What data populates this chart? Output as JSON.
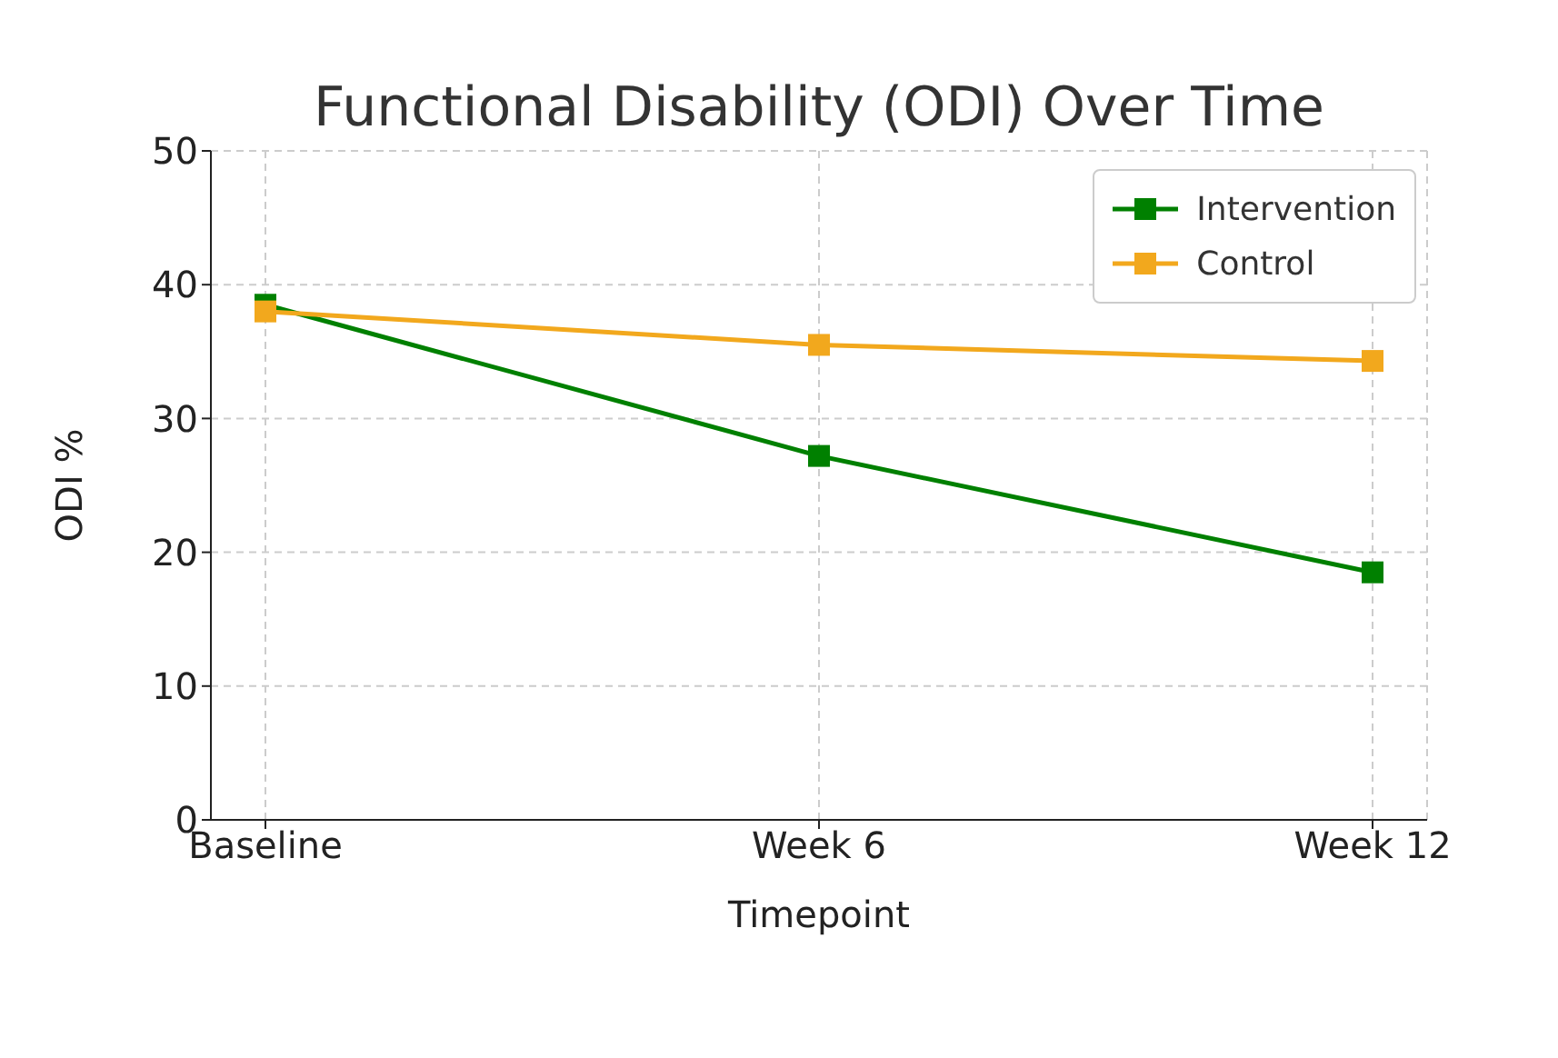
{
  "chart_data": {
    "type": "line",
    "title": "Functional Disability (ODI) Over Time",
    "xlabel": "Timepoint",
    "ylabel": "ODI %",
    "categories": [
      "Baseline",
      "Week 6",
      "Week 12"
    ],
    "series": [
      {
        "name": "Intervention",
        "color": "#008000",
        "values": [
          38.5,
          27.2,
          18.5
        ]
      },
      {
        "name": "Control",
        "color": "#f2a81d",
        "values": [
          38.0,
          35.5,
          34.3
        ]
      }
    ],
    "ylim": [
      0,
      50
    ],
    "yticks": [
      0,
      10,
      20,
      30,
      40,
      50
    ],
    "grid": true,
    "legend": "top right",
    "marker": "square",
    "line_style": "solid"
  }
}
